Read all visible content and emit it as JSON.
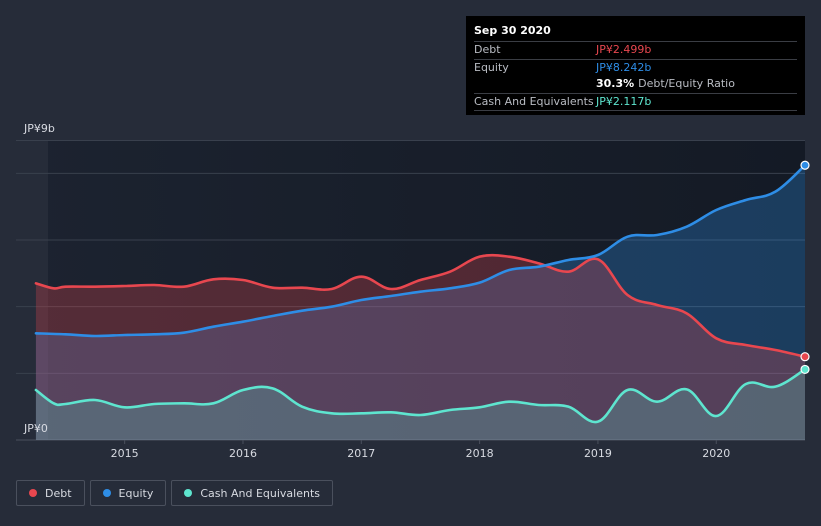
{
  "chart_data": {
    "type": "area",
    "title": "",
    "ylim": [
      0,
      9
    ],
    "xlim": [
      2014.2,
      2020.75
    ],
    "y_top_label": "JP¥9b",
    "y_bottom_label": "JP¥0",
    "x_ticks": [
      {
        "value": 2015,
        "label": "2015"
      },
      {
        "value": 2016,
        "label": "2016"
      },
      {
        "value": 2017,
        "label": "2017"
      },
      {
        "value": 2018,
        "label": "2018"
      },
      {
        "value": 2019,
        "label": "2019"
      },
      {
        "value": 2020,
        "label": "2020"
      }
    ],
    "y_gridlines": [
      2,
      4,
      6,
      8
    ],
    "series": [
      {
        "name": "Debt",
        "color": "#e8474f",
        "points": [
          [
            2014.25,
            4.7
          ],
          [
            2014.4,
            4.55
          ],
          [
            2014.5,
            4.6
          ],
          [
            2014.75,
            4.6
          ],
          [
            2015.0,
            4.62
          ],
          [
            2015.25,
            4.65
          ],
          [
            2015.5,
            4.6
          ],
          [
            2015.75,
            4.82
          ],
          [
            2016.0,
            4.8
          ],
          [
            2016.25,
            4.57
          ],
          [
            2016.5,
            4.57
          ],
          [
            2016.75,
            4.53
          ],
          [
            2017.0,
            4.9
          ],
          [
            2017.25,
            4.53
          ],
          [
            2017.5,
            4.8
          ],
          [
            2017.75,
            5.05
          ],
          [
            2018.0,
            5.5
          ],
          [
            2018.25,
            5.5
          ],
          [
            2018.5,
            5.3
          ],
          [
            2018.75,
            5.05
          ],
          [
            2019.0,
            5.42
          ],
          [
            2019.25,
            4.35
          ],
          [
            2019.5,
            4.05
          ],
          [
            2019.75,
            3.8
          ],
          [
            2020.0,
            3.05
          ],
          [
            2020.25,
            2.85
          ],
          [
            2020.5,
            2.7
          ],
          [
            2020.75,
            2.499
          ]
        ]
      },
      {
        "name": "Equity",
        "color": "#2e8de6",
        "points": [
          [
            2014.25,
            3.2
          ],
          [
            2014.5,
            3.17
          ],
          [
            2014.75,
            3.12
          ],
          [
            2015.0,
            3.15
          ],
          [
            2015.25,
            3.17
          ],
          [
            2015.5,
            3.22
          ],
          [
            2015.75,
            3.4
          ],
          [
            2016.0,
            3.55
          ],
          [
            2016.25,
            3.72
          ],
          [
            2016.5,
            3.88
          ],
          [
            2016.75,
            4.0
          ],
          [
            2017.0,
            4.2
          ],
          [
            2017.25,
            4.32
          ],
          [
            2017.5,
            4.45
          ],
          [
            2017.75,
            4.55
          ],
          [
            2018.0,
            4.72
          ],
          [
            2018.25,
            5.1
          ],
          [
            2018.5,
            5.2
          ],
          [
            2018.75,
            5.4
          ],
          [
            2019.0,
            5.55
          ],
          [
            2019.25,
            6.1
          ],
          [
            2019.5,
            6.15
          ],
          [
            2019.75,
            6.4
          ],
          [
            2020.0,
            6.9
          ],
          [
            2020.25,
            7.2
          ],
          [
            2020.5,
            7.45
          ],
          [
            2020.75,
            8.242
          ]
        ]
      },
      {
        "name": "Cash And Equivalents",
        "color": "#5ee5cf",
        "points": [
          [
            2014.25,
            1.5
          ],
          [
            2014.4,
            1.1
          ],
          [
            2014.5,
            1.08
          ],
          [
            2014.75,
            1.2
          ],
          [
            2015.0,
            0.98
          ],
          [
            2015.25,
            1.08
          ],
          [
            2015.5,
            1.1
          ],
          [
            2015.75,
            1.1
          ],
          [
            2016.0,
            1.5
          ],
          [
            2016.25,
            1.55
          ],
          [
            2016.5,
            1.0
          ],
          [
            2016.75,
            0.8
          ],
          [
            2017.0,
            0.8
          ],
          [
            2017.25,
            0.83
          ],
          [
            2017.5,
            0.75
          ],
          [
            2017.75,
            0.9
          ],
          [
            2018.0,
            0.98
          ],
          [
            2018.25,
            1.15
          ],
          [
            2018.5,
            1.05
          ],
          [
            2018.75,
            1.0
          ],
          [
            2019.0,
            0.55
          ],
          [
            2019.25,
            1.5
          ],
          [
            2019.5,
            1.15
          ],
          [
            2019.75,
            1.52
          ],
          [
            2020.0,
            0.72
          ],
          [
            2020.25,
            1.68
          ],
          [
            2020.5,
            1.6
          ],
          [
            2020.75,
            2.117
          ]
        ]
      }
    ]
  },
  "tooltip": {
    "date": "Sep 30 2020",
    "debt_label": "Debt",
    "debt_value": "JP¥2.499b",
    "equity_label": "Equity",
    "equity_value": "JP¥8.242b",
    "ratio_value": "30.3%",
    "ratio_label": "Debt/Equity Ratio",
    "cash_label": "Cash And Equivalents",
    "cash_value": "JP¥2.117b"
  },
  "legend": {
    "items": [
      {
        "label": "Debt",
        "color": "#e8474f"
      },
      {
        "label": "Equity",
        "color": "#2e8de6"
      },
      {
        "label": "Cash And Equivalents",
        "color": "#5ee5cf"
      }
    ]
  }
}
